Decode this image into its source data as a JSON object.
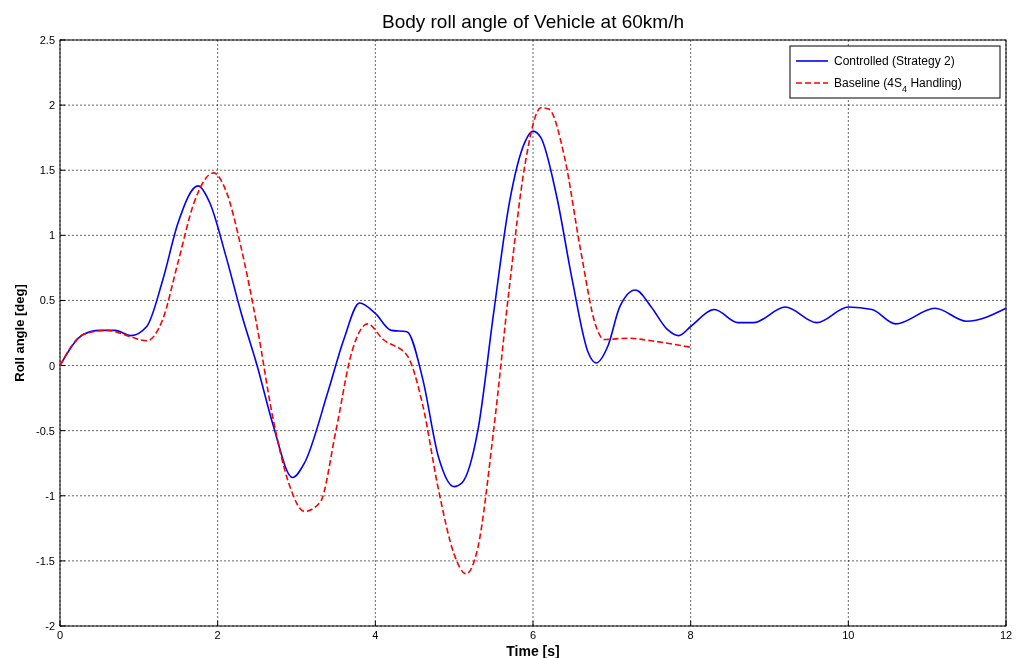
{
  "chart_data": {
    "type": "line",
    "title": "Body roll angle of Vehicle at 60km/h",
    "xlabel": "Time [s]",
    "ylabel": "Roll angle [deg]",
    "xlim": [
      0,
      12
    ],
    "xticks": [
      0,
      2,
      4,
      6,
      8,
      10,
      12
    ],
    "ylim": [
      -2,
      2.5
    ],
    "yticks": [
      -2,
      -1.5,
      -1,
      -0.5,
      0,
      0.5,
      1,
      1.5,
      2,
      2.5
    ],
    "grid": true,
    "legend": "top right",
    "marker": "none",
    "series": [
      {
        "name": "Controlled (Strategy 2)",
        "color": "#0000ff",
        "line_style": "solid",
        "x": [
          0,
          0.3,
          0.5,
          0.7,
          0.9,
          1.1,
          1.3,
          1.5,
          1.75,
          1.9,
          2.1,
          2.3,
          2.5,
          2.7,
          2.95,
          3.1,
          3.4,
          3.6,
          3.8,
          4.0,
          4.2,
          4.4,
          4.6,
          4.8,
          5.0,
          5.1,
          5.3,
          5.5,
          5.7,
          5.9,
          6.0,
          6.1,
          6.3,
          6.5,
          6.7,
          6.8,
          6.95,
          7.1,
          7.3,
          7.5,
          7.7,
          7.85,
          8.0,
          8.3,
          8.6,
          8.8,
          9.2,
          9.6,
          10.0,
          10.3,
          10.6,
          11.1,
          11.5,
          12
        ],
        "values": [
          0,
          0.24,
          0.27,
          0.27,
          0.23,
          0.3,
          0.65,
          1.1,
          1.38,
          1.25,
          0.85,
          0.4,
          0,
          -0.45,
          -0.86,
          -0.75,
          -0.2,
          0.2,
          0.48,
          0.4,
          0.27,
          0.26,
          -0.1,
          -0.7,
          -0.93,
          -0.9,
          -0.5,
          0.4,
          1.25,
          1.72,
          1.8,
          1.75,
          1.3,
          0.65,
          0.1,
          0.02,
          0.15,
          0.45,
          0.58,
          0.45,
          0.28,
          0.23,
          0.3,
          0.43,
          0.33,
          0.33,
          0.45,
          0.33,
          0.45,
          0.43,
          0.32,
          0.44,
          0.34,
          0.44
        ]
      },
      {
        "name": "Baseline (4S$_{4}$ Handling)",
        "color": "#ff0000",
        "line_style": "dashed",
        "x": [
          0,
          0.3,
          0.6,
          0.9,
          1.1,
          1.3,
          1.5,
          1.7,
          1.95,
          2.1,
          2.3,
          2.5,
          2.7,
          2.9,
          3.1,
          3.3,
          3.5,
          3.7,
          3.9,
          4.1,
          4.4,
          4.6,
          4.8,
          5.0,
          5.15,
          5.3,
          5.5,
          5.7,
          5.9,
          6.1,
          6.2,
          6.4,
          6.6,
          6.8,
          6.9,
          7.2,
          7.5,
          8
        ],
        "values": [
          0,
          0.24,
          0.27,
          0.22,
          0.19,
          0.35,
          0.8,
          1.25,
          1.48,
          1.35,
          0.9,
          0.3,
          -0.4,
          -0.9,
          -1.12,
          -1.05,
          -0.5,
          0.1,
          0.32,
          0.2,
          0.08,
          -0.3,
          -0.95,
          -1.45,
          -1.6,
          -1.4,
          -0.5,
          0.6,
          1.55,
          1.98,
          1.97,
          1.6,
          0.9,
          0.3,
          0.2,
          0.21,
          0.19,
          0.14
        ]
      }
    ]
  }
}
